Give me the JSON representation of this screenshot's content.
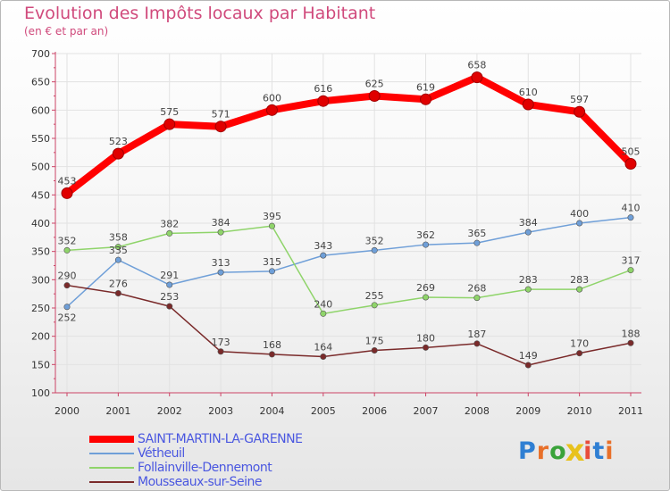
{
  "title": "Evolution des Impôts locaux par Habitant",
  "subtitle": "(en € et par an)",
  "logo": {
    "text": "Proxiti",
    "colors": [
      "#2f7fd3",
      "#e8702a",
      "#3aa33a",
      "#e8c21d",
      "#e84c3a",
      "#2f7fd3",
      "#e8702a"
    ]
  },
  "chart_data": {
    "type": "line",
    "title": "Evolution des Impôts locaux par Habitant",
    "ylabel": "(en € et par an)",
    "xlabel": "",
    "ylim": [
      100,
      700
    ],
    "yticks": [
      100,
      150,
      200,
      250,
      300,
      350,
      400,
      450,
      500,
      550,
      600,
      650,
      700
    ],
    "categories": [
      "2000",
      "2001",
      "2002",
      "2003",
      "2004",
      "2005",
      "2006",
      "2007",
      "2008",
      "2009",
      "2010",
      "2011"
    ],
    "grid": true,
    "series": [
      {
        "name": "SAINT-MARTIN-LA-GARENNE",
        "color": "#ff0000",
        "values": [
          453,
          523,
          575,
          571,
          600,
          616,
          625,
          619,
          658,
          610,
          597,
          505
        ]
      },
      {
        "name": "Vétheuil",
        "color": "#6f9fd8",
        "values": [
          252,
          335,
          291,
          313,
          315,
          343,
          352,
          362,
          365,
          384,
          400,
          410
        ]
      },
      {
        "name": "Follainville-Dennemont",
        "color": "#8fd46a",
        "values": [
          352,
          358,
          382,
          384,
          395,
          240,
          255,
          269,
          268,
          283,
          283,
          317
        ]
      },
      {
        "name": "Mousseaux-sur-Seine",
        "color": "#7a2a2a",
        "values": [
          290,
          276,
          253,
          173,
          168,
          164,
          175,
          180,
          187,
          149,
          170,
          188
        ]
      }
    ]
  }
}
